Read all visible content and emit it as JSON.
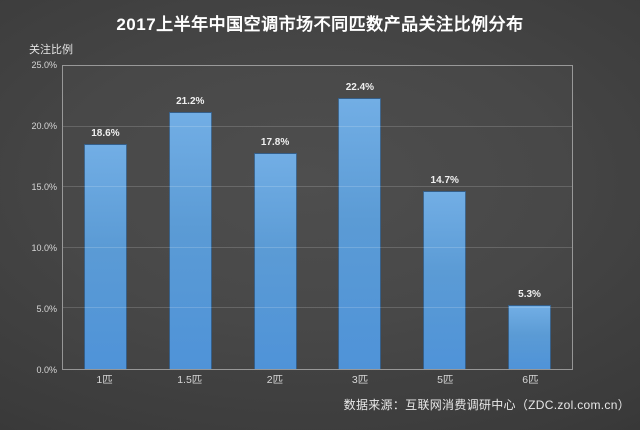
{
  "title": "2017上半年中国空调市场不同匹数产品关注比例分布",
  "y_axis_title": "关注比例",
  "footer_source": "数据来源：互联网消费调研中心（ZDC.zol.com.cn）",
  "colors": {
    "bar_fill_top": "#72aee5",
    "bar_fill_bottom": "#4f93d8",
    "bar_border": "#264260",
    "background_center": "#4b4b4b",
    "background_edge": "#272727",
    "text": "#ffffff",
    "axis_text": "#d6d6d6"
  },
  "chart_data": {
    "type": "bar",
    "title": "2017上半年中国空调市场不同匹数产品关注比例分布",
    "categories": [
      "1匹",
      "1.5匹",
      "2匹",
      "3匹",
      "5匹",
      "6匹"
    ],
    "values": [
      18.6,
      21.2,
      17.8,
      22.4,
      14.7,
      5.3
    ],
    "value_labels": [
      "18.6%",
      "21.2%",
      "17.8%",
      "22.4%",
      "14.7%",
      "5.3%"
    ],
    "xlabel": "",
    "ylabel": "关注比例",
    "ylim": [
      0,
      25
    ],
    "y_ticks": [
      {
        "value": 0,
        "label": "0.0%"
      },
      {
        "value": 5,
        "label": "5.0%"
      },
      {
        "value": 10,
        "label": "10.0%"
      },
      {
        "value": 15,
        "label": "15.0%"
      },
      {
        "value": 20,
        "label": "20.0%"
      },
      {
        "value": 25,
        "label": "25.0%"
      }
    ],
    "grid": true,
    "legend": false
  }
}
